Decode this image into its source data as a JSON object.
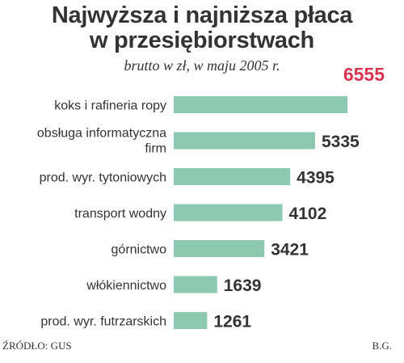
{
  "header": {
    "title_line1": "Najwyższa i najniższa płaca",
    "title_line2": "w przesiębiorstwach",
    "subtitle": "brutto w zł, w maju 2005 r."
  },
  "footer": {
    "source": "ŹRÓDŁO: GUS",
    "author": "B.G."
  },
  "chart_data": {
    "type": "bar",
    "orientation": "horizontal",
    "title": "Najwyższa i najniższa płaca w przesiębiorstwach",
    "subtitle": "brutto w zł, w maju 2005 r.",
    "categories": [
      [
        "koks i rafineria ropy"
      ],
      [
        "obsługa informatyczna",
        "firm"
      ],
      [
        "prod. wyr. tytoniowych"
      ],
      [
        "transport wodny"
      ],
      [
        "górnictwo"
      ],
      [
        "włókiennictwo"
      ],
      [
        "prod. wyr. futrzarskich"
      ]
    ],
    "values": [
      6555,
      5335,
      4395,
      4102,
      3421,
      1639,
      1261
    ],
    "value_labels": [
      "6555",
      "5335",
      "4395",
      "4102",
      "3421",
      "1639",
      "1261"
    ],
    "xlim": [
      0,
      6555
    ],
    "grid": false,
    "legend": "none",
    "colors": {
      "bar": "#8cc9b0",
      "highlight_value": "#d9344f",
      "text": "#333333"
    }
  }
}
